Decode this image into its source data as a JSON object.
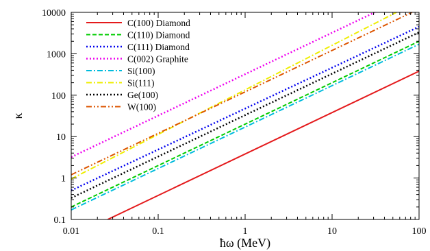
{
  "chart_data": {
    "type": "line",
    "title": "",
    "xlabel": "ħω (MeV)",
    "ylabel": "κ",
    "x_scale": "log",
    "y_scale": "log",
    "xlim": [
      0.01,
      100
    ],
    "ylim": [
      0.1,
      10000
    ],
    "x_tick_labels": [
      "0.01",
      "0.1",
      "1",
      "10",
      "100"
    ],
    "y_tick_labels": [
      "0.1",
      "1",
      "10",
      "100",
      "1000",
      "10000"
    ],
    "grid": false,
    "legend_position": "top-left",
    "series": [
      {
        "name": "C(100) Diamond",
        "color": "#e41a1c",
        "dash": "solid",
        "x": [
          0.0263,
          100
        ],
        "y": [
          0.1,
          380
        ]
      },
      {
        "name": "C(110) Diamond",
        "color": "#00cc00",
        "dash": "dashed",
        "x": [
          0.01,
          100
        ],
        "y": [
          0.2,
          2000
        ]
      },
      {
        "name": "C(111) Diamond",
        "color": "#0000ee",
        "dash": "dotted",
        "x": [
          0.01,
          100
        ],
        "y": [
          0.5,
          4500
        ]
      },
      {
        "name": "C(002) Graphite",
        "color": "#ee00ee",
        "dash": "dotted",
        "x": [
          0.01,
          31
        ],
        "y": [
          3.2,
          10000
        ]
      },
      {
        "name": "Si(100)",
        "color": "#00bbdd",
        "dash": "dashdot",
        "x": [
          0.01,
          100
        ],
        "y": [
          0.17,
          1700
        ]
      },
      {
        "name": "Si(111)",
        "color": "#eeee00",
        "dash": "dashdot",
        "x": [
          0.01,
          55
        ],
        "y": [
          0.95,
          10000
        ]
      },
      {
        "name": "Ge(100)",
        "color": "#000000",
        "dash": "dotted",
        "x": [
          0.01,
          100
        ],
        "y": [
          0.33,
          3300
        ]
      },
      {
        "name": "W(100)",
        "color": "#dd5500",
        "dash": "dashdotdot",
        "x": [
          0.01,
          83
        ],
        "y": [
          1.2,
          10000
        ]
      }
    ]
  }
}
